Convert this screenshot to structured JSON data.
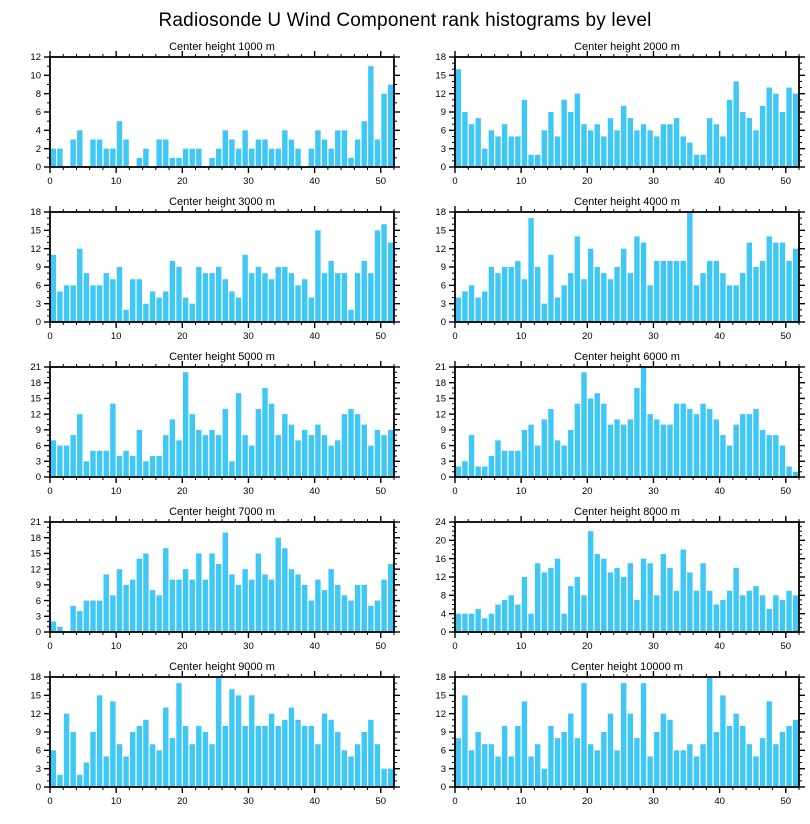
{
  "title": "Radiosonde U Wind Component rank histograms by level",
  "style": {
    "bar_color": "#3FC8F5",
    "axis_color": "#000000",
    "background": "#FFFFFF"
  },
  "chart_data": [
    {
      "type": "bar",
      "title": "Center height 1000 m",
      "xlabel": "",
      "ylabel": "",
      "xlim": [
        0,
        52
      ],
      "ylim": [
        0,
        12
      ],
      "xtick_step": 10,
      "x_minor_step": 2,
      "ytick_step": 2,
      "y_minor_step": 1,
      "x_start": 1,
      "values": [
        2,
        2,
        0,
        3,
        4,
        0,
        3,
        3,
        2,
        2,
        5,
        3,
        0,
        1,
        2,
        0,
        3,
        3,
        1,
        1,
        2,
        2,
        2,
        0,
        1,
        2,
        4,
        3,
        2,
        4,
        2,
        3,
        3,
        2,
        2,
        4,
        3,
        2,
        0,
        2,
        4,
        3,
        2,
        4,
        4,
        1,
        3,
        5,
        11,
        3,
        8,
        9
      ]
    },
    {
      "type": "bar",
      "title": "Center height 2000 m",
      "xlabel": "",
      "ylabel": "",
      "xlim": [
        0,
        52
      ],
      "ylim": [
        0,
        18
      ],
      "xtick_step": 10,
      "x_minor_step": 2,
      "ytick_step": 3,
      "y_minor_step": 1,
      "x_start": 1,
      "values": [
        16,
        9,
        7,
        8,
        3,
        6,
        5,
        7,
        5,
        5,
        11,
        2,
        2,
        6,
        9,
        5,
        11,
        9,
        12,
        7,
        6,
        7,
        5,
        8,
        6,
        10,
        8,
        6,
        7,
        6,
        5,
        7,
        7,
        8,
        5,
        4,
        2,
        2,
        8,
        7,
        5,
        11,
        14,
        9,
        8,
        6,
        10,
        13,
        12,
        9,
        13,
        12
      ]
    },
    {
      "type": "bar",
      "title": "Center height 3000 m",
      "xlabel": "",
      "ylabel": "",
      "xlim": [
        0,
        52
      ],
      "ylim": [
        0,
        18
      ],
      "xtick_step": 10,
      "x_minor_step": 2,
      "ytick_step": 3,
      "y_minor_step": 1,
      "x_start": 1,
      "values": [
        11,
        5,
        6,
        6,
        12,
        8,
        6,
        6,
        8,
        7,
        9,
        2,
        7,
        7,
        3,
        5,
        4,
        5,
        10,
        9,
        4,
        3,
        9,
        8,
        8,
        9,
        7,
        5,
        4,
        11,
        8,
        9,
        8,
        7,
        9,
        9,
        8,
        6,
        7,
        4,
        15,
        8,
        10,
        8,
        8,
        2,
        8,
        10,
        8,
        15,
        16,
        13
      ]
    },
    {
      "type": "bar",
      "title": "Center height 4000 m",
      "xlabel": "",
      "ylabel": "",
      "xlim": [
        0,
        52
      ],
      "ylim": [
        0,
        18
      ],
      "xtick_step": 10,
      "x_minor_step": 2,
      "ytick_step": 3,
      "y_minor_step": 1,
      "x_start": 1,
      "values": [
        4,
        5,
        6,
        4,
        5,
        9,
        8,
        9,
        9,
        10,
        7,
        17,
        9,
        3,
        11,
        4,
        6,
        8,
        14,
        7,
        12,
        9,
        8,
        7,
        9,
        12,
        8,
        14,
        13,
        6,
        10,
        10,
        10,
        10,
        10,
        18,
        6,
        8,
        10,
        10,
        8,
        6,
        6,
        8,
        13,
        9,
        10,
        14,
        13,
        13,
        10,
        12
      ]
    },
    {
      "type": "bar",
      "title": "Center height 5000 m",
      "xlabel": "",
      "ylabel": "",
      "xlim": [
        0,
        52
      ],
      "ylim": [
        0,
        21
      ],
      "xtick_step": 10,
      "x_minor_step": 2,
      "ytick_step": 3,
      "y_minor_step": 1,
      "x_start": 1,
      "values": [
        7,
        6,
        6,
        8,
        12,
        3,
        5,
        5,
        5,
        14,
        4,
        5,
        4,
        9,
        3,
        4,
        4,
        8,
        11,
        7,
        20,
        12,
        9,
        8,
        9,
        8,
        13,
        3,
        16,
        8,
        6,
        13,
        17,
        14,
        8,
        12,
        10,
        7,
        9,
        8,
        10,
        8,
        6,
        7,
        12,
        13,
        12,
        10,
        6,
        9,
        8,
        9
      ]
    },
    {
      "type": "bar",
      "title": "Center height 6000 m",
      "xlabel": "",
      "ylabel": "",
      "xlim": [
        0,
        52
      ],
      "ylim": [
        0,
        21
      ],
      "xtick_step": 10,
      "x_minor_step": 2,
      "ytick_step": 3,
      "y_minor_step": 1,
      "x_start": 1,
      "values": [
        2,
        3,
        8,
        2,
        2,
        4,
        7,
        5,
        5,
        5,
        9,
        10,
        6,
        11,
        13,
        7,
        6,
        9,
        14,
        20,
        15,
        16,
        14,
        10,
        11,
        10,
        11,
        17,
        21,
        12,
        11,
        10,
        10,
        14,
        14,
        13,
        12,
        14,
        13,
        11,
        8,
        6,
        10,
        12,
        12,
        13,
        9,
        8,
        8,
        6,
        2,
        1
      ]
    },
    {
      "type": "bar",
      "title": "Center height 7000 m",
      "xlabel": "",
      "ylabel": "",
      "xlim": [
        0,
        52
      ],
      "ylim": [
        0,
        21
      ],
      "xtick_step": 10,
      "x_minor_step": 2,
      "ytick_step": 3,
      "y_minor_step": 1,
      "x_start": 1,
      "values": [
        2,
        1,
        0,
        5,
        4,
        6,
        6,
        6,
        11,
        7,
        12,
        9,
        10,
        14,
        15,
        8,
        7,
        16,
        10,
        10,
        12,
        10,
        15,
        10,
        15,
        13,
        19,
        11,
        9,
        12,
        10,
        15,
        11,
        10,
        18,
        16,
        12,
        11,
        9,
        6,
        10,
        8,
        12,
        9,
        7,
        6,
        9,
        9,
        5,
        6,
        10,
        13
      ]
    },
    {
      "type": "bar",
      "title": "Center height 8000 m",
      "xlabel": "",
      "ylabel": "",
      "xlim": [
        0,
        52
      ],
      "ylim": [
        0,
        24
      ],
      "xtick_step": 10,
      "x_minor_step": 2,
      "ytick_step": 4,
      "y_minor_step": 1,
      "x_start": 1,
      "values": [
        4,
        4,
        4,
        5,
        3,
        4,
        6,
        7,
        8,
        6,
        12,
        4,
        15,
        13,
        14,
        16,
        4,
        10,
        12,
        8,
        22,
        17,
        16,
        13,
        14,
        12,
        15,
        7,
        16,
        15,
        8,
        17,
        14,
        9,
        18,
        13,
        9,
        15,
        9,
        6,
        7,
        9,
        14,
        8,
        9,
        10,
        8,
        5,
        8,
        7,
        9,
        8
      ]
    },
    {
      "type": "bar",
      "title": "Center height 9000 m",
      "xlabel": "",
      "ylabel": "",
      "xlim": [
        0,
        52
      ],
      "ylim": [
        0,
        18
      ],
      "xtick_step": 10,
      "x_minor_step": 2,
      "ytick_step": 3,
      "y_minor_step": 1,
      "x_start": 1,
      "values": [
        6,
        2,
        12,
        9,
        2,
        4,
        9,
        15,
        5,
        14,
        7,
        5,
        9,
        10,
        11,
        7,
        6,
        13,
        8,
        17,
        10,
        7,
        10,
        9,
        7,
        18,
        10,
        16,
        15,
        10,
        15,
        10,
        10,
        12,
        10,
        11,
        13,
        11,
        10,
        10,
        7,
        12,
        11,
        9,
        6,
        5,
        7,
        9,
        11,
        7,
        3,
        3
      ]
    },
    {
      "type": "bar",
      "title": "Center height 10000 m",
      "xlabel": "",
      "ylabel": "",
      "xlim": [
        0,
        52
      ],
      "ylim": [
        0,
        18
      ],
      "xtick_step": 10,
      "x_minor_step": 2,
      "ytick_step": 3,
      "y_minor_step": 1,
      "x_start": 1,
      "values": [
        8,
        15,
        6,
        9,
        7,
        7,
        5,
        10,
        5,
        10,
        14,
        5,
        7,
        3,
        10,
        8,
        9,
        12,
        8,
        17,
        7,
        6,
        9,
        12,
        6,
        17,
        12,
        8,
        17,
        5,
        9,
        12,
        11,
        6,
        6,
        7,
        5,
        7,
        18,
        9,
        15,
        10,
        12,
        10,
        7,
        5,
        8,
        14,
        7,
        9,
        10,
        11
      ]
    }
  ]
}
